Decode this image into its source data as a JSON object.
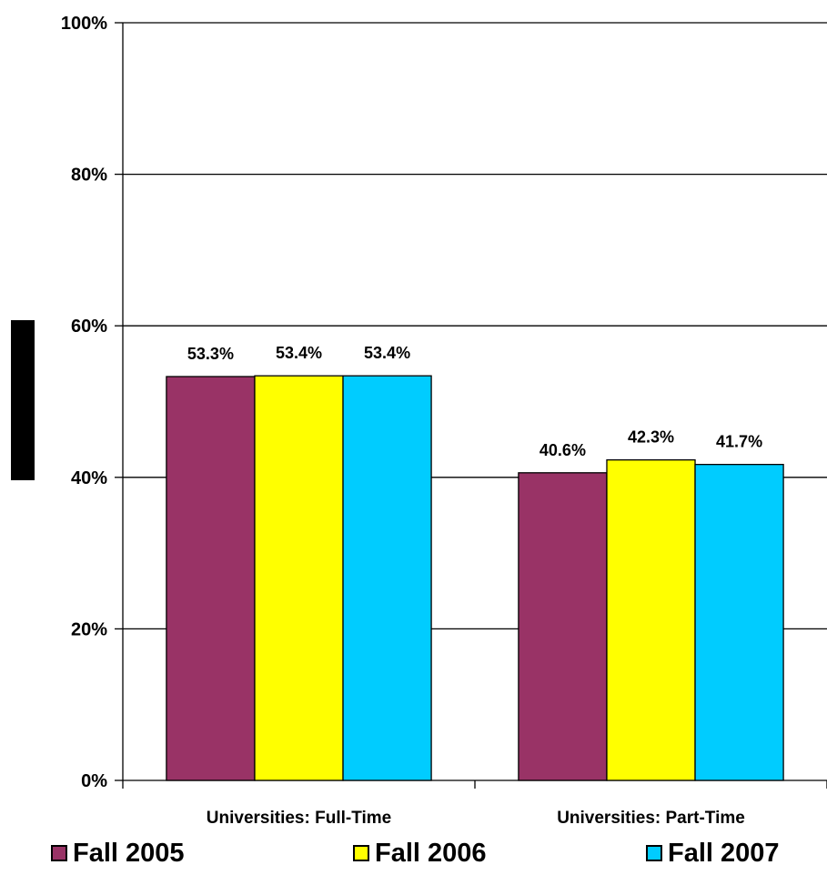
{
  "chart_data": {
    "type": "bar",
    "categories": [
      "Universities: Full-Time",
      "Universities: Part-Time"
    ],
    "series": [
      {
        "name": "Fall 2005",
        "color": "#993366",
        "values": [
          53.3,
          40.6
        ],
        "labels": [
          "53.3%",
          "40.6%"
        ]
      },
      {
        "name": "Fall 2006",
        "color": "#FFFF00",
        "values": [
          53.4,
          42.3
        ],
        "labels": [
          "53.4%",
          "42.3%"
        ]
      },
      {
        "name": "Fall 2007",
        "color": "#00CCFF",
        "values": [
          53.4,
          41.7
        ],
        "labels": [
          "53.4%",
          "41.7%"
        ]
      }
    ],
    "ylim": [
      0,
      100
    ],
    "yticks": [
      "0%",
      "20%",
      "40%",
      "60%",
      "80%",
      "100%"
    ],
    "grid": true,
    "legend_position": "bottom",
    "title": "",
    "xlabel": "",
    "ylabel": ""
  }
}
